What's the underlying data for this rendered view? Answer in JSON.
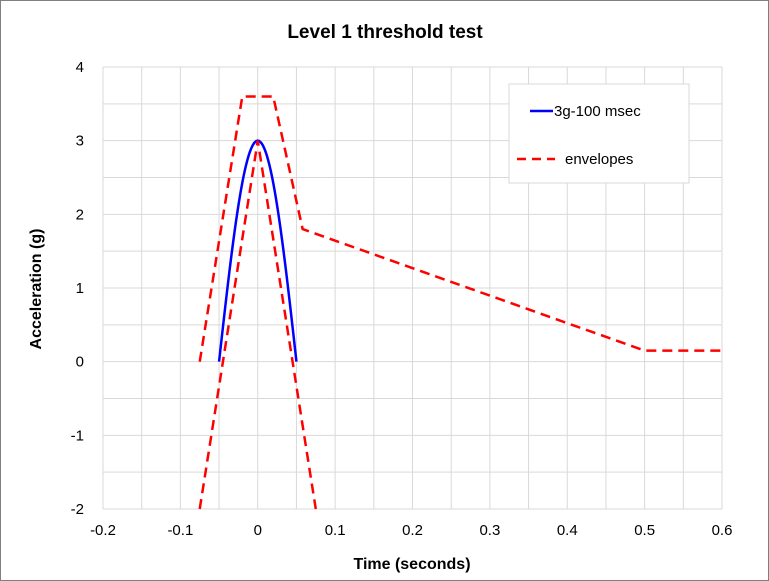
{
  "chart_data": {
    "type": "line",
    "title": "Level 1 threshold test",
    "xlabel": "Time (seconds)",
    "ylabel": "Acceleration (g)",
    "xlim": [
      -0.2,
      0.6
    ],
    "ylim": [
      -2,
      4
    ],
    "x_major_ticks": [
      -0.2,
      -0.1,
      0,
      0.1,
      0.2,
      0.3,
      0.4,
      0.5,
      0.6
    ],
    "x_tick_labels": [
      "-0.2",
      "-0.1",
      "0",
      "0.1",
      "0.2",
      "0.3",
      "0.4",
      "0.5",
      "0.6"
    ],
    "y_major_ticks": [
      -2,
      -1,
      0,
      1,
      2,
      3,
      4
    ],
    "y_tick_labels": [
      "-2",
      "-1",
      "0",
      "1",
      "2",
      "3",
      "4"
    ],
    "x_minor_step": 0.05,
    "y_minor_step": 0.5,
    "grid": true,
    "legend_position": "top-right",
    "series": [
      {
        "name": "3g-100 msec",
        "color": "#0000ff",
        "style": "solid",
        "shape": "half-sine",
        "amplitude": 3,
        "x_start": -0.05,
        "x_end": 0.05
      },
      {
        "name": "envelopes",
        "color": "#ff0000",
        "style": "dashed",
        "segments": [
          {
            "x": [
              -0.075,
              -0.02,
              0.02,
              0.058,
              0.5,
              0.6
            ],
            "y": [
              0,
              3.6,
              3.6,
              1.8,
              0.15,
              0.15
            ]
          },
          {
            "x": [
              -0.075,
              0,
              0.075
            ],
            "y": [
              -2,
              3,
              -2
            ]
          }
        ]
      }
    ]
  }
}
